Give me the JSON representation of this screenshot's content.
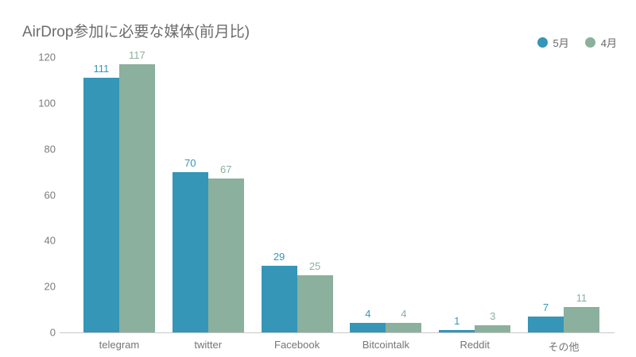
{
  "chart_data": {
    "type": "bar",
    "title": "AirDrop参加に必要な媒体(前月比)",
    "xlabel": "",
    "ylabel": "",
    "ylim": [
      0,
      120
    ],
    "yticks": [
      0,
      20,
      40,
      60,
      80,
      100,
      120
    ],
    "grid": false,
    "legend_position": "top-right",
    "value_labels": true,
    "categories": [
      {
        "id": "telegram",
        "label": "telegram"
      },
      {
        "id": "twitter",
        "label": "twitter"
      },
      {
        "id": "facebook",
        "label": "Facebook"
      },
      {
        "id": "bitcointalk",
        "label": "Bitcointalk"
      },
      {
        "id": "reddit",
        "label": "Reddit"
      },
      {
        "id": "other",
        "label": "その他"
      }
    ],
    "series": [
      {
        "id": "may",
        "name": "5月",
        "color": "#3596b7",
        "values": [
          111,
          70,
          29,
          4,
          1,
          7
        ]
      },
      {
        "id": "april",
        "name": "4月",
        "color": "#8bb09d",
        "values": [
          117,
          67,
          25,
          4,
          3,
          11
        ]
      }
    ]
  },
  "colors": {
    "background": "#ffffff",
    "title_text": "#6d6d6d",
    "axis_label_text": "#757575",
    "y_tick_text": "#7b7b7b",
    "axis_line": "#c8c8c8",
    "legend_text": "#666666"
  }
}
